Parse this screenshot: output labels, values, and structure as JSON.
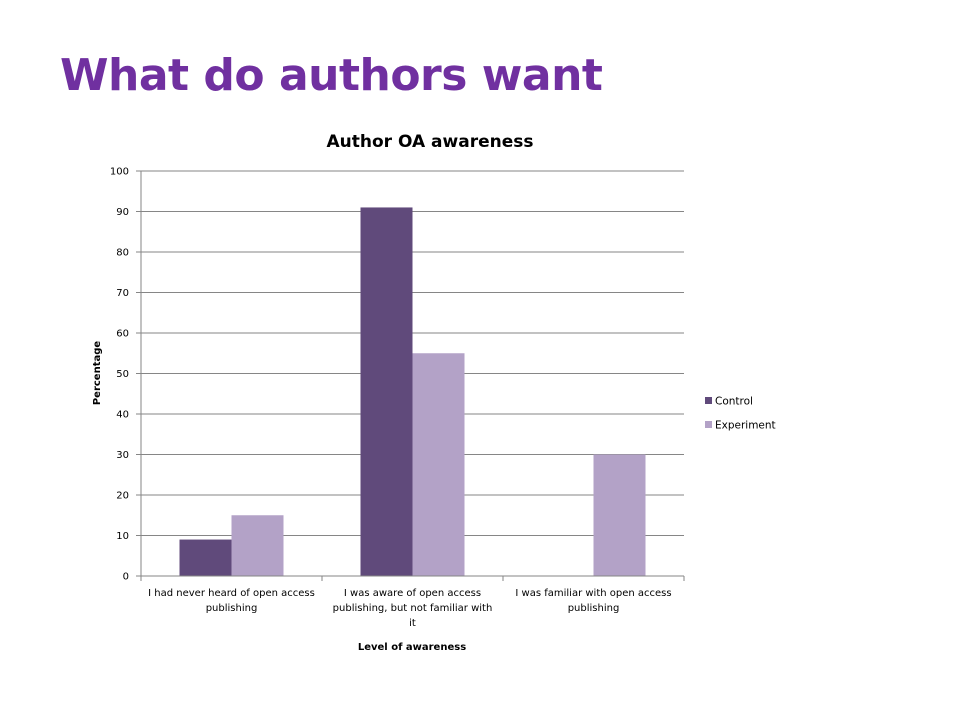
{
  "slide": {
    "title": "What do authors want"
  },
  "chart_data": {
    "type": "bar",
    "title": "Author OA awareness",
    "xlabel": "Level of awareness",
    "ylabel": "Percentage",
    "ylim": [
      0,
      100
    ],
    "yticks": [
      0,
      10,
      20,
      30,
      40,
      50,
      60,
      70,
      80,
      90,
      100
    ],
    "grid": true,
    "legend_position": "right",
    "categories": [
      [
        "I had never heard of open access",
        "publishing"
      ],
      [
        "I was aware of open access",
        "publishing, but not familiar with",
        "it"
      ],
      [
        "I was familiar with open access",
        "publishing"
      ]
    ],
    "series": [
      {
        "name": "Control",
        "color": "#604a7b",
        "values": [
          9,
          91,
          0
        ]
      },
      {
        "name": "Experiment",
        "color": "#b3a2c7",
        "values": [
          15,
          55,
          30
        ]
      }
    ]
  }
}
